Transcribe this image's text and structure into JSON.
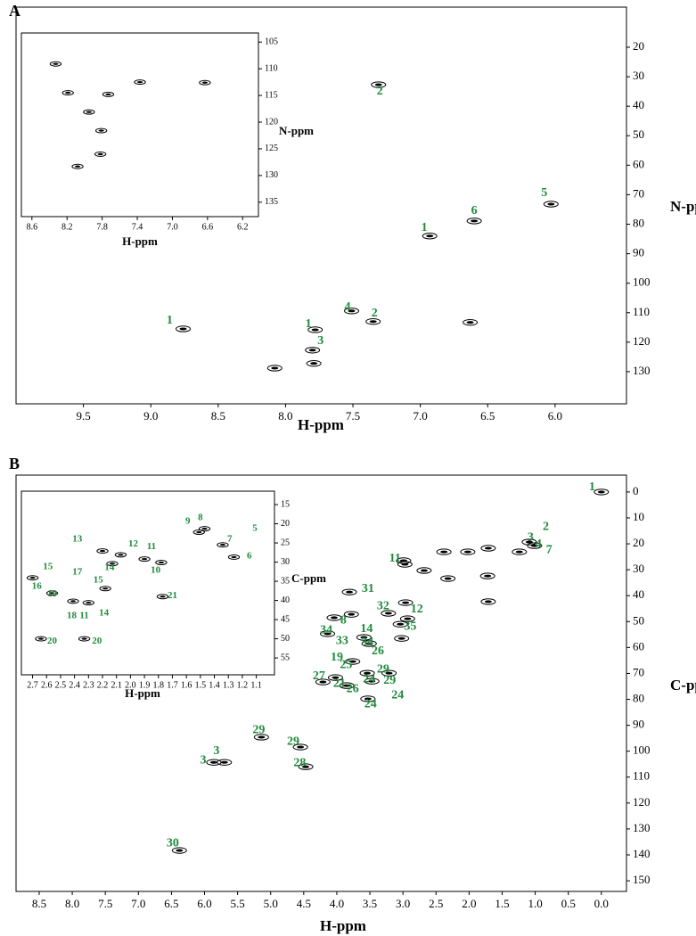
{
  "chart_data": [
    {
      "type": "scatter",
      "panel": "A",
      "xlabel": "H-ppm",
      "ylabel": "N-ppm",
      "xlim": [
        10.0,
        5.47
      ],
      "ylim": [
        140.9,
        6.4
      ],
      "xticks": [
        9.5,
        {
          "value": 9,
          "label": "9.0"
        },
        8.5,
        {
          "value": 8,
          "label": "8.0"
        },
        7.5,
        {
          "value": 7,
          "label": "7.0"
        },
        6.5,
        {
          "value": 6,
          "label": "6.0"
        }
      ],
      "yticks": [
        20,
        30,
        40,
        50,
        60,
        70,
        80,
        90,
        100,
        110,
        120,
        130
      ],
      "series": [
        {
          "color": "#000000",
          "x": [
            7.31,
            6.03,
            6.6,
            6.93,
            8.76,
            7.78,
            7.8,
            7.35,
            6.63,
            7.79,
            8.08,
            7.51
          ],
          "values": [
            32.7,
            73.2,
            78.9,
            84.0,
            115.5,
            115.8,
            122.7,
            113.0,
            113.3,
            127.2,
            128.8,
            109.4
          ]
        }
      ],
      "annotation_color": "#1e8b3a",
      "annotations": [
        {
          "text": "2",
          "x": 7.3,
          "y": 35.1
        },
        {
          "text": "5",
          "x": 6.08,
          "y": 69.5
        },
        {
          "text": "6",
          "x": 6.6,
          "y": 75.6
        },
        {
          "text": "1",
          "x": 6.97,
          "y": 81.3
        },
        {
          "text": "1",
          "x": 8.86,
          "y": 112.7
        },
        {
          "text": "1",
          "x": 7.83,
          "y": 113.9
        },
        {
          "text": "3",
          "x": 7.74,
          "y": 119.7
        },
        {
          "text": "2",
          "x": 7.34,
          "y": 110.3
        },
        {
          "text": "4",
          "x": 7.54,
          "y": 108.2
        }
      ]
    },
    {
      "type": "scatter",
      "xlabel": "H-ppm",
      "ylabel": "N-ppm",
      "xlim": [
        8.72,
        6.02
      ],
      "ylim": [
        137.7,
        103.3
      ],
      "xticks": [
        8.6,
        8.2,
        7.8,
        7.4,
        {
          "value": 7,
          "label": "7.0"
        },
        6.6,
        6.2
      ],
      "yticks": [
        105,
        110,
        115,
        120,
        125,
        130,
        135
      ],
      "series": [
        {
          "color": "#000000",
          "x": [
            8.33,
            8.19,
            7.73,
            7.37,
            6.63,
            7.81,
            7.82,
            8.08,
            7.95
          ],
          "values": [
            109.1,
            114.5,
            114.8,
            112.5,
            112.6,
            121.6,
            126.0,
            128.3,
            118.1
          ]
        }
      ],
      "annotation_color": "#1e8b3a",
      "annotations": []
    },
    {
      "type": "scatter",
      "panel": "B",
      "xlabel": "H-ppm",
      "ylabel": "C-ppm",
      "xlim": [
        8.85,
        -0.38
      ],
      "ylim": [
        154.1,
        -6.5
      ],
      "xticks": [
        8.5,
        {
          "value": 8,
          "label": "8.0"
        },
        7.5,
        {
          "value": 7,
          "label": "7.0"
        },
        6.5,
        {
          "value": 6,
          "label": "6.0"
        },
        5.5,
        {
          "value": 5,
          "label": "5.0"
        },
        4.5,
        {
          "value": 4,
          "label": "4.0"
        },
        3.5,
        {
          "value": 3,
          "label": "3.0"
        },
        2.5,
        {
          "value": 2,
          "label": "2.0"
        },
        1.5,
        {
          "value": 1,
          "label": "1.0"
        },
        0.5,
        {
          "value": 0,
          "label": "0.0"
        }
      ],
      "yticks": [
        0,
        10,
        20,
        30,
        40,
        50,
        60,
        70,
        80,
        90,
        100,
        110,
        120,
        130,
        140,
        150
      ],
      "series": [
        {
          "color": "#000000",
          "x": [
            0.0,
            1.71,
            2.38,
            2.32,
            2.68,
            2.97,
            1.72,
            2.02,
            1.01,
            1.24,
            1.09,
            1.71,
            2.99,
            3.81,
            4.04,
            4.14,
            3.78,
            3.59,
            3.51,
            3.47,
            3.85,
            3.76,
            4.02,
            4.21,
            3.53,
            3.54,
            3.21,
            3.02,
            2.93,
            3.04,
            2.96,
            3.22,
            4.55,
            4.47,
            5.14,
            5.86,
            5.7,
            6.38
          ],
          "values": [
            0.0,
            21.7,
            23.1,
            33.4,
            30.3,
            27.9,
            32.4,
            23.1,
            20.7,
            23.1,
            19.3,
            42.3,
            26.5,
            38.6,
            48.5,
            54.7,
            47.2,
            56.1,
            58.5,
            73.0,
            74.7,
            65.4,
            71.6,
            73.3,
            79.8,
            69.9,
            69.9,
            56.5,
            48.9,
            51.0,
            42.7,
            46.8,
            98.4,
            106.0,
            94.6,
            104.3,
            104.3,
            138.3
          ]
        }
      ],
      "annotation_color": "#1e8b3a",
      "annotations": [
        {
          "text": "1",
          "x": 0.14,
          "y": -1.7
        },
        {
          "text": "2",
          "x": 0.84,
          "y": 13.5
        },
        {
          "text": "3",
          "x": 1.07,
          "y": 17.6
        },
        {
          "text": "4",
          "x": 0.95,
          "y": 20.3
        },
        {
          "text": "7",
          "x": 0.79,
          "y": 22.4
        },
        {
          "text": "11",
          "x": 3.12,
          "y": 25.8
        },
        {
          "text": "31",
          "x": 3.53,
          "y": 37.5
        },
        {
          "text": "32",
          "x": 3.3,
          "y": 44.1
        },
        {
          "text": "12",
          "x": 2.79,
          "y": 45.4
        },
        {
          "text": "35",
          "x": 2.89,
          "y": 52.0
        },
        {
          "text": "8",
          "x": 3.9,
          "y": 49.6
        },
        {
          "text": "34",
          "x": 4.16,
          "y": 53.4
        },
        {
          "text": "14",
          "x": 3.55,
          "y": 53.0
        },
        {
          "text": "33",
          "x": 3.92,
          "y": 57.5
        },
        {
          "text": "34",
          "x": 3.54,
          "y": 58.0
        },
        {
          "text": "26",
          "x": 3.38,
          "y": 61.6
        },
        {
          "text": "19",
          "x": 4.0,
          "y": 64.0
        },
        {
          "text": "25",
          "x": 3.86,
          "y": 66.8
        },
        {
          "text": "29",
          "x": 3.3,
          "y": 68.5
        },
        {
          "text": "24",
          "x": 3.51,
          "y": 72.3
        },
        {
          "text": "29",
          "x": 3.2,
          "y": 72.8
        },
        {
          "text": "27",
          "x": 4.27,
          "y": 71.2
        },
        {
          "text": "21",
          "x": 3.96,
          "y": 74.0
        },
        {
          "text": "26",
          "x": 3.76,
          "y": 76.1
        },
        {
          "text": "24",
          "x": 3.08,
          "y": 78.5
        },
        {
          "text": "24",
          "x": 3.49,
          "y": 81.9
        },
        {
          "text": "29",
          "x": 5.18,
          "y": 91.9
        },
        {
          "text": "29",
          "x": 4.66,
          "y": 96.4
        },
        {
          "text": "3",
          "x": 6.02,
          "y": 103.6
        },
        {
          "text": "3",
          "x": 5.82,
          "y": 100.1
        },
        {
          "text": "28",
          "x": 4.56,
          "y": 104.6
        },
        {
          "text": "30",
          "x": 6.48,
          "y": 135.6
        }
      ]
    },
    {
      "type": "scatter",
      "xlabel": "H-ppm",
      "ylabel": "C-ppm",
      "xlim": [
        2.78,
        0.97
      ],
      "ylim": [
        59.4,
        11.5
      ],
      "xticks": [
        2.7,
        2.6,
        2.5,
        2.4,
        2.3,
        2.2,
        2.1,
        {
          "value": 2,
          "label": "2.0"
        },
        1.9,
        1.8,
        1.7,
        1.6,
        1.5,
        1.4,
        1.3,
        1.2,
        1.1
      ],
      "yticks": [
        15,
        20,
        25,
        30,
        35,
        40,
        45,
        50,
        55
      ],
      "series": [
        {
          "color": "#000000",
          "x": [
            2.7,
            2.56,
            2.41,
            2.3,
            2.18,
            2.13,
            2.2,
            2.64,
            2.33,
            2.07,
            1.9,
            1.78,
            1.51,
            1.47,
            1.34,
            1.26,
            1.77
          ],
          "values": [
            34.1,
            38.1,
            40.2,
            40.6,
            36.9,
            30.4,
            27.1,
            50.0,
            50.0,
            28.1,
            29.2,
            30.1,
            22.2,
            21.3,
            25.5,
            28.7,
            39.0
          ]
        }
      ],
      "annotation_color": "#1e8b3a",
      "annotations": [
        {
          "text": "13",
          "x": 2.38,
          "y": 24.1
        },
        {
          "text": "12",
          "x": 1.98,
          "y": 25.3
        },
        {
          "text": "11",
          "x": 1.85,
          "y": 26.0
        },
        {
          "text": "14",
          "x": 2.15,
          "y": 31.5
        },
        {
          "text": "10",
          "x": 1.82,
          "y": 32.2
        },
        {
          "text": "9",
          "x": 1.59,
          "y": 19.4
        },
        {
          "text": "8",
          "x": 1.5,
          "y": 18.5
        },
        {
          "text": "7",
          "x": 1.29,
          "y": 24.1
        },
        {
          "text": "5",
          "x": 1.11,
          "y": 21.3
        },
        {
          "text": "6",
          "x": 1.15,
          "y": 28.5
        },
        {
          "text": "15",
          "x": 2.59,
          "y": 31.3
        },
        {
          "text": "17",
          "x": 2.38,
          "y": 32.7
        },
        {
          "text": "15",
          "x": 2.23,
          "y": 34.8
        },
        {
          "text": "16",
          "x": 2.67,
          "y": 36.4
        },
        {
          "text": "19",
          "x": 2.56,
          "y": 38.3
        },
        {
          "text": "18",
          "x": 2.42,
          "y": 44.1
        },
        {
          "text": "11",
          "x": 2.33,
          "y": 44.1
        },
        {
          "text": "14",
          "x": 2.19,
          "y": 43.4
        },
        {
          "text": "20",
          "x": 2.56,
          "y": 50.7
        },
        {
          "text": "20",
          "x": 2.24,
          "y": 50.7
        },
        {
          "text": "21",
          "x": 1.7,
          "y": 38.8
        }
      ]
    }
  ]
}
